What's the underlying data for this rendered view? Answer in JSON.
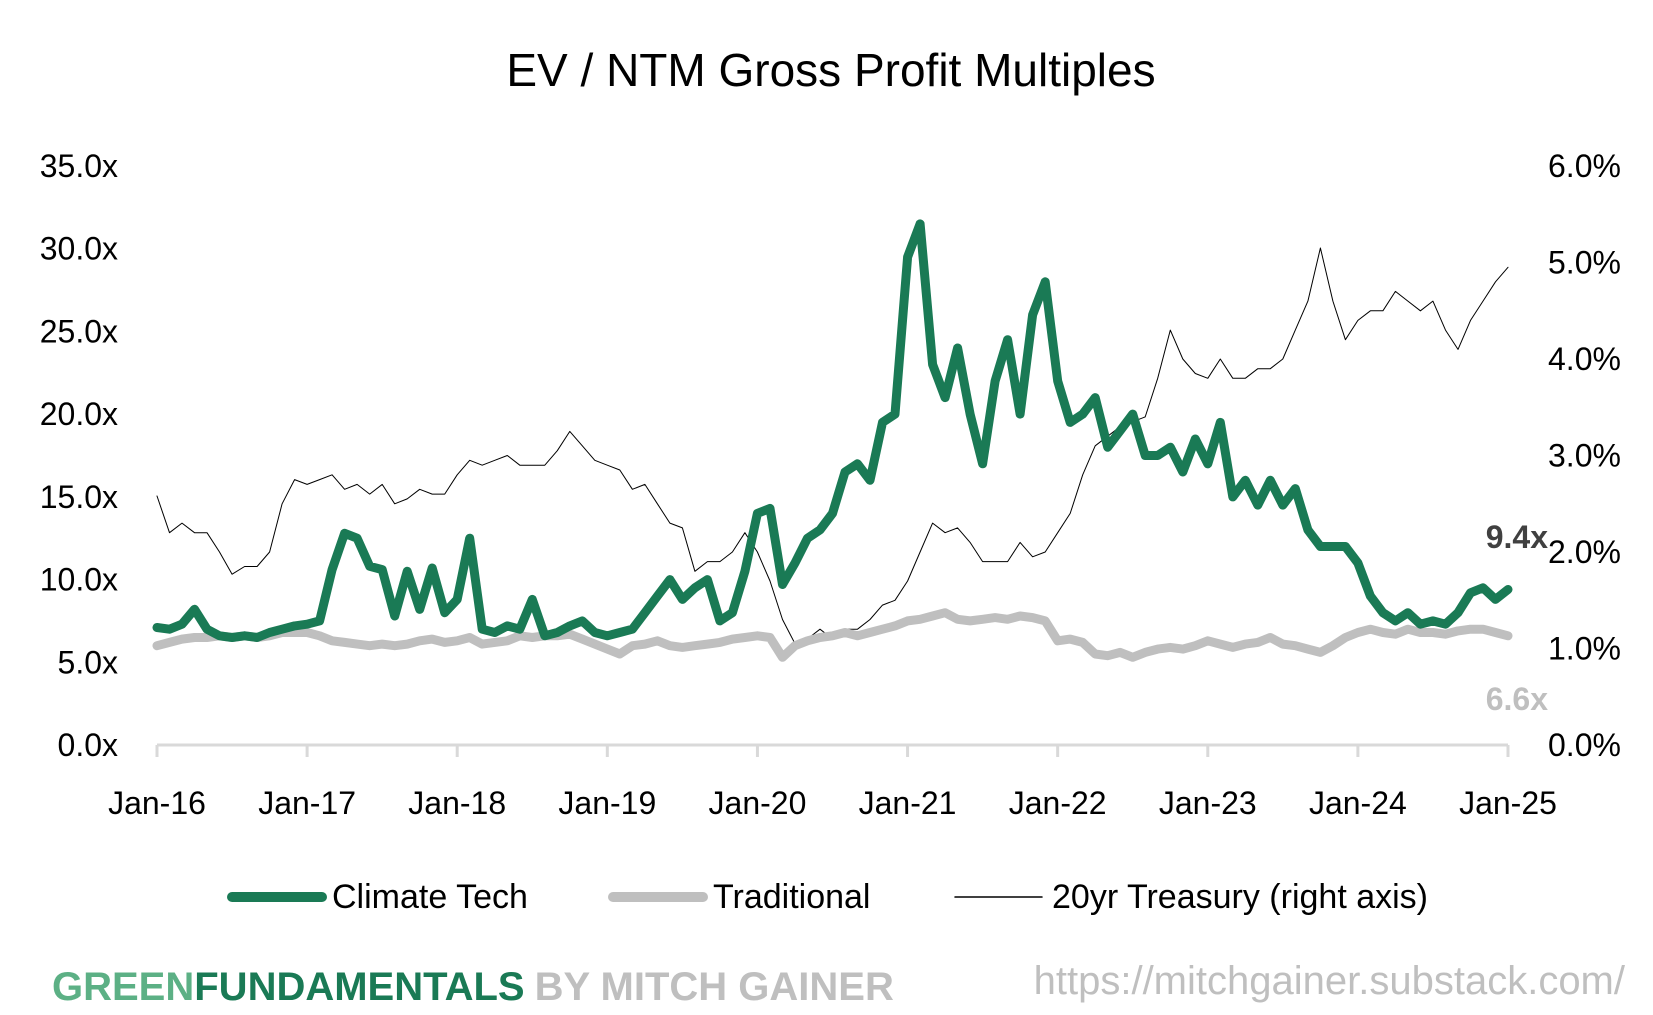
{
  "chart_data": {
    "type": "line",
    "title": "EV / NTM Gross Profit Multiples",
    "x_start": "2016-01",
    "x_frequency": "monthly",
    "x_tick_labels": [
      "Jan-16",
      "Jan-17",
      "Jan-18",
      "Jan-19",
      "Jan-20",
      "Jan-21",
      "Jan-22",
      "Jan-23",
      "Jan-24",
      "Jan-25"
    ],
    "y_left": {
      "range": [
        0,
        35
      ],
      "ticks": [
        0,
        5,
        10,
        15,
        20,
        25,
        30,
        35
      ],
      "tick_labels": [
        "0.0x",
        "5.0x",
        "10.0x",
        "15.0x",
        "20.0x",
        "25.0x",
        "30.0x",
        "35.0x"
      ]
    },
    "y_right": {
      "range": [
        0,
        6
      ],
      "ticks": [
        0,
        1,
        2,
        3,
        4,
        5,
        6
      ],
      "tick_labels": [
        "0.0%",
        "1.0%",
        "2.0%",
        "3.0%",
        "4.0%",
        "5.0%",
        "6.0%"
      ]
    },
    "grid": false,
    "legend_position": "bottom",
    "series": [
      {
        "name": "Climate Tech",
        "axis": "left",
        "color": "#1a7a55",
        "end_label": "9.4x",
        "values": [
          7.1,
          7.0,
          7.3,
          8.2,
          7.0,
          6.6,
          6.5,
          6.6,
          6.5,
          6.8,
          7.0,
          7.2,
          7.3,
          7.5,
          10.6,
          12.8,
          12.5,
          10.8,
          10.6,
          7.8,
          10.5,
          8.2,
          10.7,
          8.0,
          8.8,
          12.5,
          7.0,
          6.8,
          7.2,
          7.0,
          8.8,
          6.6,
          6.8,
          7.2,
          7.5,
          6.8,
          6.6,
          6.8,
          7.0,
          8.0,
          9.0,
          10.0,
          8.8,
          9.5,
          10.0,
          7.5,
          8.0,
          10.5,
          14.0,
          14.3,
          9.7,
          11.0,
          12.5,
          13.0,
          14.0,
          16.5,
          17.0,
          16.0,
          19.5,
          20.0,
          29.5,
          31.5,
          23.0,
          21.0,
          24.0,
          20.0,
          17.0,
          22.0,
          24.5,
          20.0,
          26.0,
          28.0,
          22.0,
          19.5,
          20.0,
          21.0,
          18.0,
          19.0,
          20.0,
          17.5,
          17.5,
          18.0,
          16.5,
          18.5,
          17.0,
          19.5,
          15.0,
          16.0,
          14.5,
          16.0,
          14.5,
          15.5,
          13.0,
          12.0,
          12.0,
          12.0,
          11.0,
          9.0,
          8.0,
          7.5,
          8.0,
          7.3,
          7.5,
          7.3,
          8.0,
          9.2,
          9.5,
          8.8,
          9.4
        ]
      },
      {
        "name": "Traditional",
        "axis": "left",
        "color": "#bfbfbf",
        "end_label": "6.6x",
        "values": [
          6.0,
          6.2,
          6.4,
          6.5,
          6.5,
          6.6,
          6.5,
          6.6,
          6.5,
          6.6,
          6.8,
          6.8,
          6.8,
          6.6,
          6.3,
          6.2,
          6.1,
          6.0,
          6.1,
          6.0,
          6.1,
          6.3,
          6.4,
          6.2,
          6.3,
          6.5,
          6.1,
          6.2,
          6.3,
          6.6,
          6.5,
          6.6,
          6.6,
          6.7,
          6.4,
          6.1,
          5.8,
          5.5,
          6.0,
          6.1,
          6.3,
          6.0,
          5.9,
          6.0,
          6.1,
          6.2,
          6.4,
          6.5,
          6.6,
          6.5,
          5.3,
          6.0,
          6.3,
          6.5,
          6.6,
          6.8,
          6.6,
          6.8,
          7.0,
          7.2,
          7.5,
          7.6,
          7.8,
          8.0,
          7.6,
          7.5,
          7.6,
          7.7,
          7.6,
          7.8,
          7.7,
          7.5,
          6.3,
          6.4,
          6.2,
          5.5,
          5.4,
          5.6,
          5.3,
          5.6,
          5.8,
          5.9,
          5.8,
          6.0,
          6.3,
          6.1,
          5.9,
          6.1,
          6.2,
          6.5,
          6.1,
          6.0,
          5.8,
          5.6,
          6.0,
          6.5,
          6.8,
          7.0,
          6.8,
          6.7,
          7.0,
          6.8,
          6.8,
          6.7,
          6.9,
          7.0,
          7.0,
          6.8,
          6.6
        ]
      },
      {
        "name": "20yr Treasury (right axis)",
        "axis": "right",
        "color": "#000000",
        "values": [
          2.58,
          2.2,
          2.3,
          2.2,
          2.2,
          2.0,
          1.77,
          1.85,
          1.85,
          2.0,
          2.5,
          2.75,
          2.7,
          2.75,
          2.8,
          2.65,
          2.7,
          2.6,
          2.7,
          2.5,
          2.55,
          2.65,
          2.6,
          2.6,
          2.8,
          2.95,
          2.9,
          2.95,
          3.0,
          2.9,
          2.9,
          2.9,
          3.05,
          3.25,
          3.1,
          2.95,
          2.9,
          2.85,
          2.65,
          2.7,
          2.5,
          2.3,
          2.25,
          1.8,
          1.9,
          1.9,
          2.0,
          2.2,
          2.0,
          1.7,
          1.3,
          1.05,
          1.1,
          1.2,
          1.1,
          1.2,
          1.2,
          1.3,
          1.45,
          1.5,
          1.7,
          2.0,
          2.3,
          2.2,
          2.25,
          2.1,
          1.9,
          1.9,
          1.9,
          2.1,
          1.95,
          2.0,
          2.2,
          2.4,
          2.8,
          3.1,
          3.2,
          3.3,
          3.35,
          3.4,
          3.8,
          4.3,
          4.0,
          3.85,
          3.8,
          4.0,
          3.8,
          3.8,
          3.9,
          3.9,
          4.0,
          4.3,
          4.6,
          5.15,
          4.6,
          4.2,
          4.4,
          4.5,
          4.5,
          4.7,
          4.6,
          4.5,
          4.6,
          4.3,
          4.1,
          4.4,
          4.6,
          4.8,
          4.95
        ]
      }
    ]
  },
  "footer": {
    "brand_green_light": "GREEN",
    "brand_green_dark": "FUNDAMENTALS",
    "brand_by": "BY MITCH GAINER",
    "url": "https://mitchgainer.substack.com/"
  }
}
